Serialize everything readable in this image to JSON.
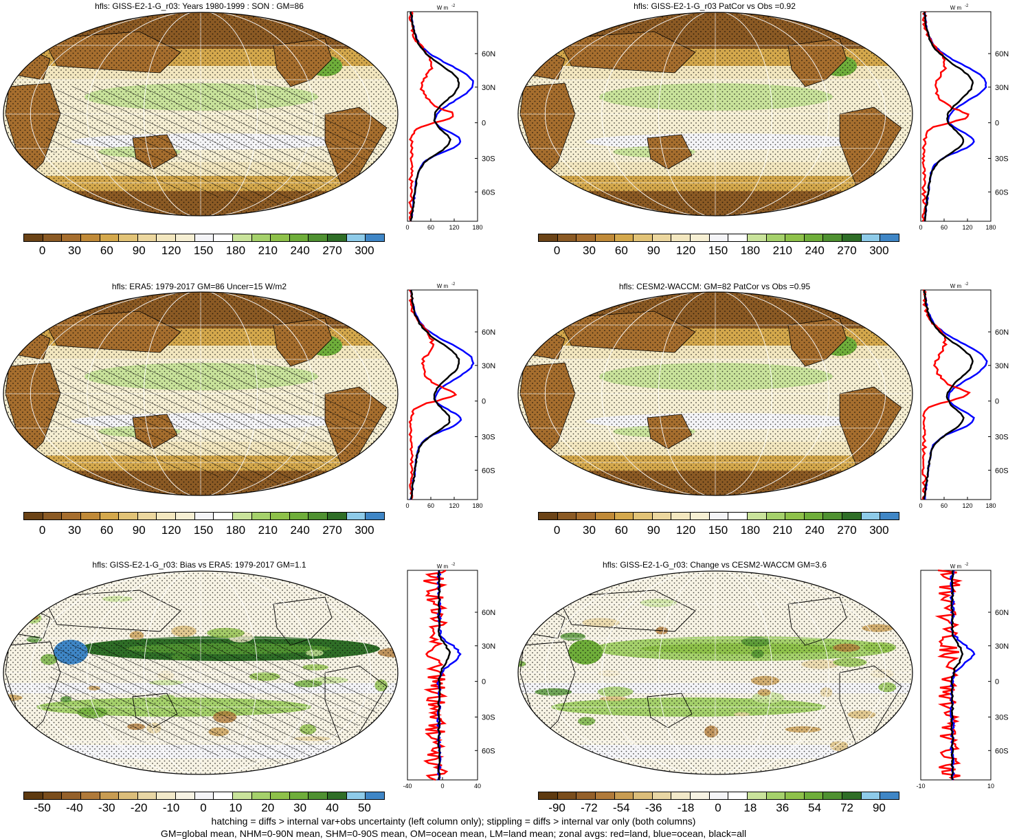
{
  "palettes": {
    "abs": [
      "#6b4316",
      "#8b5a24",
      "#a66e2e",
      "#c08a38",
      "#d4a84c",
      "#e2c377",
      "#ecd79f",
      "#f3e7bf",
      "#f6efd3",
      "#f4f4f7",
      "#ffffff",
      "#c9e39b",
      "#a5d16b",
      "#8ec14a",
      "#6fae3a",
      "#4f9131",
      "#2f6e27",
      "#8ecbe9",
      "#3f86c6"
    ],
    "diff": [
      "#5e3a10",
      "#7a4d1c",
      "#94602a",
      "#b07a3a",
      "#c89c52",
      "#dbbd7a",
      "#e8d6a4",
      "#f2e9c9",
      "#f7f3e4",
      "#f4f4f7",
      "#ffffff",
      "#c9e39b",
      "#a5d16b",
      "#8ec14a",
      "#6fae3a",
      "#4f9131",
      "#2f6e27",
      "#8ecbe9",
      "#3f86c6"
    ]
  },
  "line_colors": {
    "land": "#ff0000",
    "ocean": "#0000ff",
    "all": "#000000"
  },
  "panels": [
    {
      "title": "hfls: GISS-E2-1-G_r03: Years 1980-1999 : SON : GM=86",
      "cb_labels": [
        "0",
        "30",
        "60",
        "90",
        "120",
        "150",
        "180",
        "210",
        "240",
        "270",
        "300"
      ],
      "zonal_unit": "W m",
      "zonal_xticks": [
        "0",
        "60",
        "120",
        "180"
      ],
      "zonal_lat": [
        "60N",
        "30N",
        "0",
        "30S",
        "60S"
      ]
    },
    {
      "title": "hfls: GISS-E2-1-G_r03 PatCor vs Obs =0.92",
      "cb_labels": [
        "0",
        "30",
        "60",
        "90",
        "120",
        "150",
        "180",
        "210",
        "240",
        "270",
        "300"
      ],
      "zonal_unit": "W m",
      "zonal_xticks": [
        "0",
        "60",
        "120",
        "180"
      ],
      "zonal_lat": [
        "60N",
        "30N",
        "0",
        "30S",
        "60S"
      ]
    },
    {
      "title": "hfls: ERA5: 1979-2017 GM=86 Uncer=15 W/m2",
      "cb_labels": [
        "0",
        "30",
        "60",
        "90",
        "120",
        "150",
        "180",
        "210",
        "240",
        "270",
        "300"
      ],
      "zonal_unit": "W m",
      "zonal_xticks": [
        "0",
        "60",
        "120",
        "180"
      ],
      "zonal_lat": [
        "60N",
        "30N",
        "0",
        "30S",
        "60S"
      ]
    },
    {
      "title": "hfls: CESM2-WACCM: GM=82 PatCor vs Obs =0.95",
      "cb_labels": [
        "0",
        "30",
        "60",
        "90",
        "120",
        "150",
        "180",
        "210",
        "240",
        "270",
        "300"
      ],
      "zonal_unit": "W m",
      "zonal_xticks": [
        "0",
        "60",
        "120",
        "180"
      ],
      "zonal_lat": [
        "60N",
        "30N",
        "0",
        "30S",
        "60S"
      ]
    },
    {
      "title": "hfls: GISS-E2-1-G_r03: Bias vs ERA5: 1979-2017  GM=1.1",
      "cb_labels": [
        "-50",
        "-40",
        "-30",
        "-20",
        "-10",
        "0",
        "10",
        "20",
        "30",
        "40",
        "50"
      ],
      "zonal_unit": "W m",
      "zonal_xticks": [
        "-40",
        "0",
        "40"
      ],
      "zonal_lat": [
        "60N",
        "30N",
        "0",
        "30S",
        "60S"
      ]
    },
    {
      "title": "hfls: GISS-E2-1-G_r03: Change vs CESM2-WACCM GM=3.6",
      "cb_labels": [
        "-90",
        "-72",
        "-54",
        "-36",
        "-18",
        "0",
        "18",
        "36",
        "54",
        "72",
        "90"
      ],
      "zonal_unit": "W m",
      "zonal_xticks": [
        "-10",
        "10"
      ],
      "zonal_lat": [
        "60N",
        "30N",
        "0",
        "30S",
        "60S"
      ]
    }
  ],
  "footnote": {
    "line1": "hatching = diffs > internal var+obs uncertainty (left column only); stippling = diffs > internal var only (both columns)",
    "line2": "GM=global mean, NHM=0-90N mean, SHM=0-90S mean, OM=ocean mean, LM=land mean; zonal avgs: red=land, blue=ocean, black=all"
  }
}
